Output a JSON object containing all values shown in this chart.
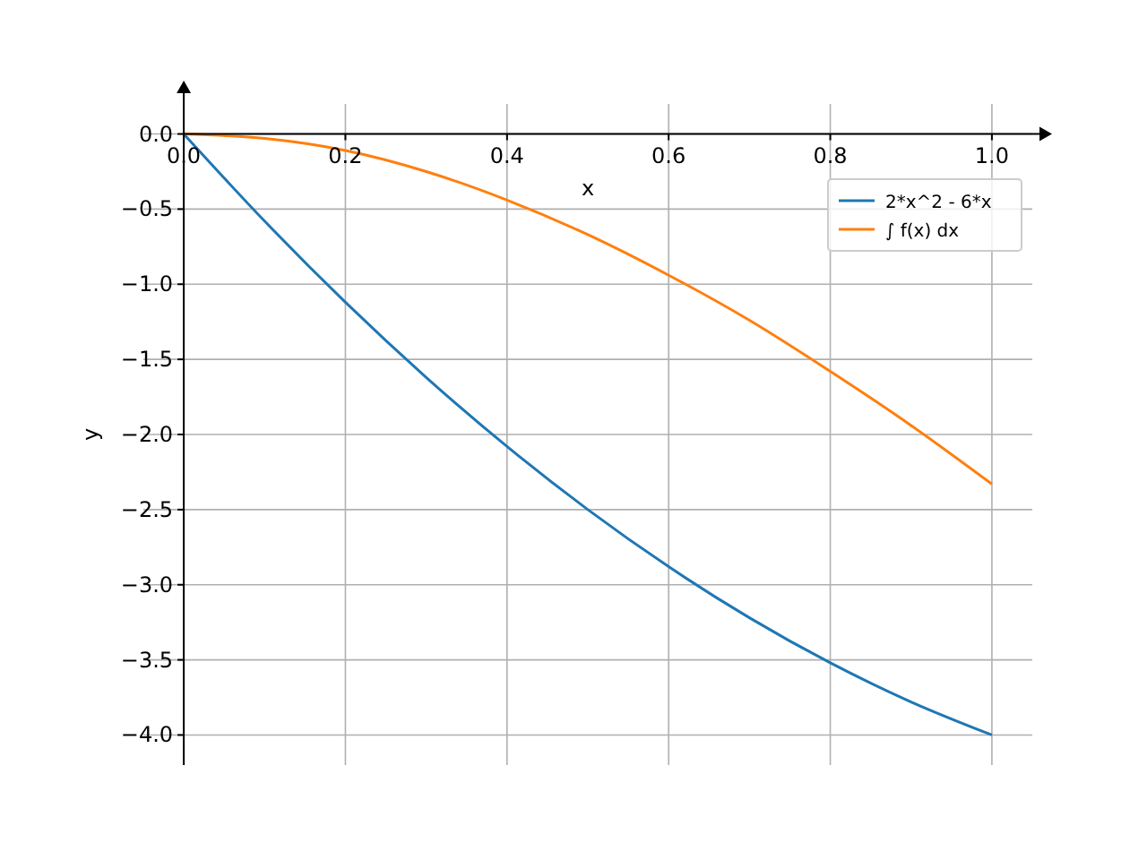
{
  "chart_data": {
    "type": "line",
    "xlabel": "x",
    "ylabel": "y",
    "x": [
      0,
      0.1,
      0.2,
      0.3,
      0.4,
      0.5,
      0.6,
      0.7,
      0.8,
      0.9,
      1
    ],
    "series": [
      {
        "name": "2*x^2 - 6*x",
        "color": "#1f77b4",
        "values": [
          0,
          -0.58,
          -1.12,
          -1.62,
          -2.08,
          -2.5,
          -2.88,
          -3.22,
          -3.52,
          -3.78,
          -4
        ]
      },
      {
        "name": "∫ f(x) dx",
        "color": "#ff7f0e",
        "values": [
          0,
          -0.03,
          -0.11,
          -0.25,
          -0.44,
          -0.67,
          -0.94,
          -1.24,
          -1.58,
          -1.94,
          -2.33
        ]
      }
    ],
    "xlim": [
      -0.05,
      1.05
    ],
    "ylim": [
      -4.2,
      0.2
    ],
    "xticks": [
      {
        "value": 0,
        "label": "0.0"
      },
      {
        "value": 0.2,
        "label": "0.2"
      },
      {
        "value": 0.4,
        "label": "0.4"
      },
      {
        "value": 0.6,
        "label": "0.6"
      },
      {
        "value": 0.8,
        "label": "0.8"
      },
      {
        "value": 1,
        "label": "1.0"
      }
    ],
    "yticks": [
      {
        "value": 0,
        "label": "0.0"
      },
      {
        "value": -0.5,
        "label": "−0.5"
      },
      {
        "value": -1,
        "label": "−1.0"
      },
      {
        "value": -1.5,
        "label": "−1.5"
      },
      {
        "value": -2,
        "label": "−2.0"
      },
      {
        "value": -2.5,
        "label": "−2.5"
      },
      {
        "value": -3,
        "label": "−3.0"
      },
      {
        "value": -3.5,
        "label": "−3.5"
      },
      {
        "value": -4,
        "label": "−4.0"
      }
    ],
    "grid": true,
    "legend": "top right",
    "marker": "none",
    "line_style": "solid"
  }
}
